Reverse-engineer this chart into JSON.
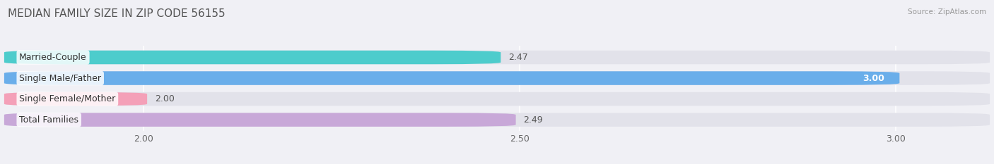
{
  "title": "MEDIAN FAMILY SIZE IN ZIP CODE 56155",
  "source": "Source: ZipAtlas.com",
  "categories": [
    "Married-Couple",
    "Single Male/Father",
    "Single Female/Mother",
    "Total Families"
  ],
  "values": [
    2.47,
    3.0,
    2.0,
    2.49
  ],
  "bar_colors": [
    "#4dcccc",
    "#6aaeea",
    "#f4a0b8",
    "#c8a8d8"
  ],
  "bar_label_inside": [
    false,
    true,
    false,
    false
  ],
  "xlim_left": 1.82,
  "xlim_right": 3.12,
  "xticks": [
    2.0,
    2.5,
    3.0
  ],
  "background_color": "#f0f0f5",
  "bar_bg_color": "#e2e2ea",
  "title_fontsize": 11,
  "label_fontsize": 9,
  "value_fontsize": 9,
  "tick_fontsize": 9
}
